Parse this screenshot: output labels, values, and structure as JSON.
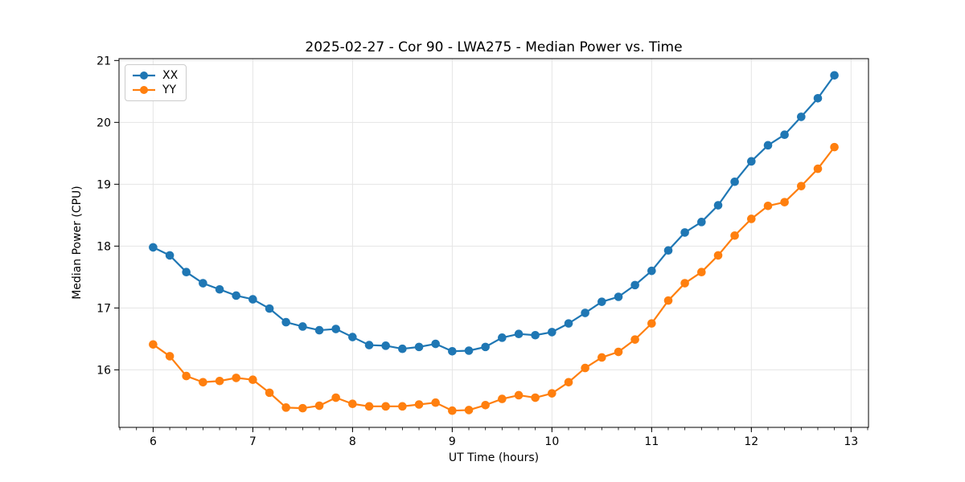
{
  "figure": {
    "title": "2025-02-27 - Cor 90 - LWA275 - Median Power vs. Time",
    "xlabel": "UT Time (hours)",
    "ylabel": "Median Power (CPU)"
  },
  "chart_data": {
    "type": "line",
    "title": "2025-02-27 - Cor 90 - LWA275 - Median Power vs. Time",
    "xlabel": "UT Time (hours)",
    "ylabel": "Median Power (CPU)",
    "xlim": [
      5.658,
      13.175
    ],
    "ylim": [
      15.07,
      21.03
    ],
    "x_ticks": [
      6,
      7,
      8,
      9,
      10,
      11,
      12,
      13
    ],
    "y_ticks": [
      16,
      17,
      18,
      19,
      20,
      21
    ],
    "x_minor_step": 0.1666667,
    "grid": true,
    "grid_color": "#e5e5e5",
    "legend_position": "upper left",
    "marker": "circle",
    "x": [
      6.0,
      6.167,
      6.333,
      6.5,
      6.667,
      6.833,
      7.0,
      7.167,
      7.333,
      7.5,
      7.667,
      7.833,
      8.0,
      8.167,
      8.333,
      8.5,
      8.667,
      8.833,
      9.0,
      9.167,
      9.333,
      9.5,
      9.667,
      9.833,
      10.0,
      10.167,
      10.333,
      10.5,
      10.667,
      10.833,
      11.0,
      11.167,
      11.333,
      11.5,
      11.667,
      11.833,
      12.0,
      12.167,
      12.333,
      12.5,
      12.667,
      12.833
    ],
    "series": [
      {
        "name": "XX",
        "color": "#1f77b4",
        "values": [
          17.98,
          17.85,
          17.58,
          17.4,
          17.3,
          17.2,
          17.14,
          16.99,
          16.77,
          16.7,
          16.64,
          16.66,
          16.53,
          16.4,
          16.39,
          16.34,
          16.37,
          16.42,
          16.3,
          16.31,
          16.37,
          16.52,
          16.58,
          16.56,
          16.61,
          16.75,
          16.92,
          17.1,
          17.18,
          17.37,
          17.6,
          17.93,
          18.22,
          18.39,
          18.66,
          19.04,
          19.37,
          19.63,
          19.8,
          20.09,
          20.39,
          20.76
        ]
      },
      {
        "name": "YY",
        "color": "#ff7f0e",
        "values": [
          16.41,
          16.22,
          15.9,
          15.8,
          15.82,
          15.87,
          15.84,
          15.63,
          15.39,
          15.38,
          15.42,
          15.55,
          15.45,
          15.41,
          15.41,
          15.41,
          15.44,
          15.47,
          15.34,
          15.35,
          15.43,
          15.53,
          15.59,
          15.55,
          15.62,
          15.8,
          16.03,
          16.2,
          16.29,
          16.49,
          16.75,
          17.12,
          17.4,
          17.58,
          17.85,
          18.17,
          18.44,
          18.65,
          18.71,
          18.97,
          19.25,
          19.6
        ]
      }
    ]
  }
}
